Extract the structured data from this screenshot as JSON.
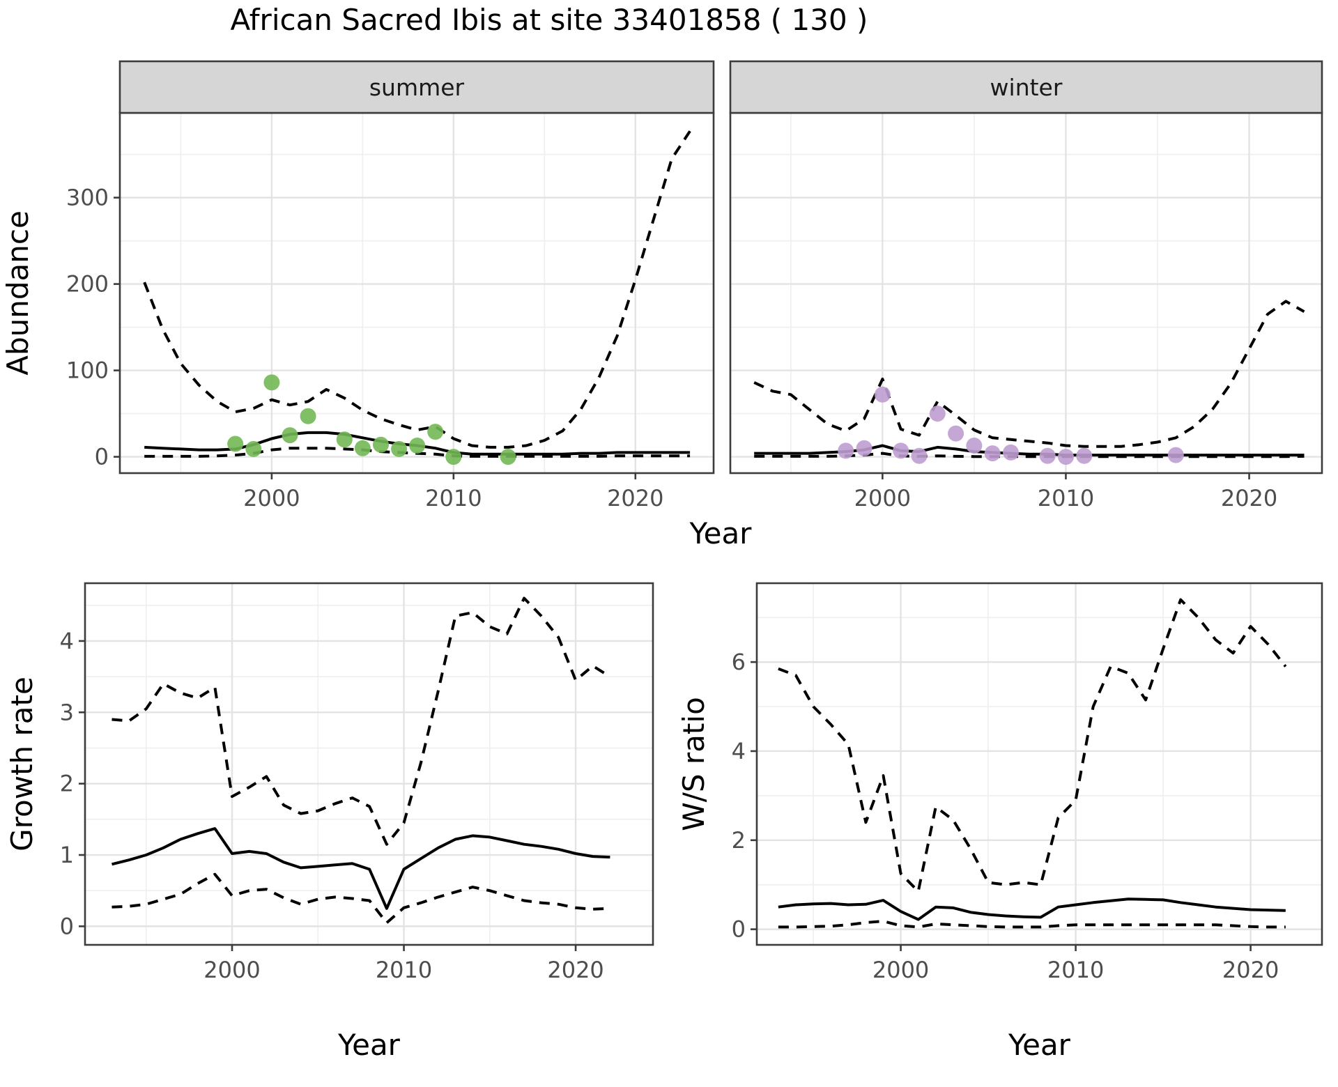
{
  "title": "African Sacred Ibis at site 33401858 ( 130 )",
  "colors": {
    "summer_points": "#73b857",
    "winter_points": "#bf9dd1",
    "line": "#000000",
    "grid_major": "#e3e3e3",
    "grid_minor": "#efefef",
    "panel_border": "#3c3c3c",
    "strip_fill": "#d6d6d6",
    "strip_text": "#1a1a1a",
    "tick_text": "#4d4d4d"
  },
  "chart_data": [
    {
      "id": "abundance-summer",
      "type": "line",
      "facet": "summer",
      "xlabel": "Year",
      "ylabel": "Abundance",
      "xlim": [
        1991.65,
        2024.3
      ],
      "ylim": [
        -18.9,
        398.1
      ],
      "x_ticks": [
        2000,
        2010,
        2020
      ],
      "x_minor": [
        1995,
        2005,
        2015
      ],
      "y_ticks": [
        0,
        100,
        200,
        300
      ],
      "y_minor": [
        50,
        150,
        250,
        350
      ],
      "grid": true,
      "legend": "none",
      "x": [
        1993,
        1994,
        1995,
        1996,
        1997,
        1998,
        1999,
        2000,
        2001,
        2002,
        2003,
        2004,
        2005,
        2006,
        2007,
        2008,
        2009,
        2010,
        2011,
        2012,
        2013,
        2014,
        2015,
        2016,
        2017,
        2018,
        2019,
        2020,
        2021,
        2022,
        2023
      ],
      "series": [
        {
          "name": "upper-ci",
          "style": "dashed",
          "values": [
            202,
            148,
            108,
            83,
            64,
            52,
            56,
            66,
            60,
            64,
            78,
            68,
            54,
            44,
            37,
            31,
            35,
            21,
            13,
            11,
            11,
            13,
            19,
            30,
            55,
            92,
            140,
            205,
            275,
            345,
            377
          ]
        },
        {
          "name": "median",
          "style": "solid",
          "values": [
            11,
            10,
            9,
            8,
            8,
            9,
            14,
            21,
            26,
            28,
            28,
            26,
            22,
            18,
            15,
            13,
            10,
            5,
            3,
            3,
            3,
            3,
            3,
            3,
            4,
            4,
            5,
            5,
            5,
            5,
            5
          ]
        },
        {
          "name": "lower-ci",
          "style": "dashed",
          "values": [
            0.5,
            0.5,
            0.5,
            0.5,
            1,
            2,
            4,
            8,
            10,
            10,
            10,
            9,
            8,
            6,
            5,
            4,
            3,
            1,
            0.5,
            0.5,
            0.5,
            0.5,
            0.5,
            0.5,
            0.5,
            0.5,
            1,
            1,
            1,
            1,
            1
          ]
        }
      ],
      "points": {
        "name": "observed-counts",
        "color": "#73b857",
        "data": [
          [
            1998,
            15
          ],
          [
            1999,
            9
          ],
          [
            2000,
            86
          ],
          [
            2001,
            25
          ],
          [
            2002,
            47
          ],
          [
            2004,
            20
          ],
          [
            2005,
            10
          ],
          [
            2006,
            14
          ],
          [
            2007,
            9
          ],
          [
            2008,
            13
          ],
          [
            2009,
            29
          ],
          [
            2010,
            0
          ],
          [
            2013,
            0
          ]
        ]
      }
    },
    {
      "id": "abundance-winter",
      "type": "line",
      "facet": "winter",
      "xlabel": "Year",
      "ylabel": "",
      "xlim": [
        1991.7,
        2023.97
      ],
      "ylim": [
        -18.9,
        398.1
      ],
      "x_ticks": [
        2000,
        2010,
        2020
      ],
      "x_minor": [
        1995,
        2005,
        2015
      ],
      "y_ticks": [
        0,
        100,
        200,
        300
      ],
      "y_minor": [
        50,
        150,
        250,
        350
      ],
      "grid": true,
      "legend": "none",
      "x": [
        1993,
        1994,
        1995,
        1996,
        1997,
        1998,
        1999,
        2000,
        2001,
        2002,
        2003,
        2004,
        2005,
        2006,
        2007,
        2008,
        2009,
        2010,
        2011,
        2012,
        2013,
        2014,
        2015,
        2016,
        2017,
        2018,
        2019,
        2020,
        2021,
        2022,
        2023
      ],
      "series": [
        {
          "name": "upper-ci",
          "style": "dashed",
          "values": [
            86,
            76,
            72,
            55,
            38,
            30,
            44,
            90,
            32,
            25,
            64,
            48,
            31,
            22,
            20,
            18,
            16,
            13,
            12,
            12,
            12,
            14,
            17,
            22,
            35,
            55,
            85,
            125,
            165,
            180,
            168
          ]
        },
        {
          "name": "median",
          "style": "solid",
          "values": [
            4,
            4,
            4,
            4,
            5,
            6,
            8,
            13,
            7,
            6,
            11,
            9,
            6,
            5,
            4,
            3,
            3,
            2,
            2,
            2,
            2,
            2,
            2,
            2,
            2,
            2,
            2,
            2,
            2,
            2,
            2
          ]
        },
        {
          "name": "lower-ci",
          "style": "dashed",
          "values": [
            0.5,
            0.5,
            0.5,
            0.5,
            0.5,
            1,
            2,
            4,
            1,
            0.5,
            1,
            0.5,
            0.3,
            0.3,
            0.3,
            0.3,
            0.3,
            0.3,
            0.3,
            0.3,
            0.3,
            0.3,
            0.3,
            0.3,
            0.3,
            0.3,
            0.3,
            0.3,
            0.3,
            0.3,
            0.5
          ]
        }
      ],
      "points": {
        "name": "observed-counts",
        "color": "#bf9dd1",
        "data": [
          [
            1998,
            7
          ],
          [
            1999,
            10
          ],
          [
            2000,
            72
          ],
          [
            2001,
            7
          ],
          [
            2002,
            1
          ],
          [
            2003,
            50
          ],
          [
            2004,
            27
          ],
          [
            2005,
            13
          ],
          [
            2006,
            4
          ],
          [
            2007,
            5
          ],
          [
            2009,
            1
          ],
          [
            2010,
            0
          ],
          [
            2011,
            1
          ],
          [
            2016,
            2
          ]
        ]
      }
    },
    {
      "id": "growth-rate",
      "type": "line",
      "facet": null,
      "xlabel": "Year",
      "ylabel": "Growth rate",
      "xlim": [
        1991.44,
        2024.5
      ],
      "ylim": [
        -0.26,
        4.81
      ],
      "x_ticks": [
        2000,
        2010,
        2020
      ],
      "x_minor": [
        1995,
        2005,
        2015
      ],
      "y_ticks": [
        0,
        1,
        2,
        3,
        4
      ],
      "y_minor": [
        0.5,
        1.5,
        2.5,
        3.5,
        4.5
      ],
      "grid": true,
      "legend": "none",
      "x": [
        1993,
        1994,
        1995,
        1996,
        1997,
        1998,
        1999,
        2000,
        2001,
        2002,
        2003,
        2004,
        2005,
        2006,
        2007,
        2008,
        2009,
        2010,
        2011,
        2012,
        2013,
        2014,
        2015,
        2016,
        2017,
        2018,
        2019,
        2020,
        2021,
        2022
      ],
      "series": [
        {
          "name": "upper-ci",
          "style": "dashed",
          "values": [
            2.9,
            2.88,
            3.05,
            3.4,
            3.27,
            3.2,
            3.35,
            1.82,
            1.95,
            2.1,
            1.7,
            1.58,
            1.62,
            1.72,
            1.8,
            1.68,
            1.15,
            1.45,
            2.3,
            3.3,
            4.35,
            4.4,
            4.2,
            4.1,
            4.6,
            4.35,
            4.05,
            3.45,
            3.65,
            3.5
          ]
        },
        {
          "name": "median",
          "style": "solid",
          "values": [
            0.87,
            0.93,
            1.0,
            1.1,
            1.22,
            1.3,
            1.37,
            1.02,
            1.05,
            1.02,
            0.9,
            0.82,
            0.84,
            0.86,
            0.88,
            0.8,
            0.25,
            0.8,
            0.95,
            1.1,
            1.22,
            1.27,
            1.25,
            1.2,
            1.15,
            1.12,
            1.08,
            1.02,
            0.98,
            0.97
          ]
        },
        {
          "name": "lower-ci",
          "style": "dashed",
          "values": [
            0.27,
            0.28,
            0.31,
            0.38,
            0.45,
            0.6,
            0.73,
            0.43,
            0.5,
            0.52,
            0.4,
            0.31,
            0.38,
            0.41,
            0.39,
            0.36,
            0.05,
            0.26,
            0.33,
            0.41,
            0.48,
            0.55,
            0.5,
            0.43,
            0.36,
            0.33,
            0.31,
            0.26,
            0.24,
            0.25
          ]
        }
      ],
      "points": null
    },
    {
      "id": "ws-ratio",
      "type": "line",
      "facet": null,
      "xlabel": "Year",
      "ylabel": "W/S ratio",
      "xlim": [
        1991.77,
        2024.08
      ],
      "ylim": [
        -0.35,
        7.77
      ],
      "x_ticks": [
        2000,
        2010,
        2020
      ],
      "x_minor": [
        1995,
        2005,
        2015
      ],
      "y_ticks": [
        0,
        2,
        4,
        6
      ],
      "y_minor": [
        1,
        3,
        5,
        7
      ],
      "grid": true,
      "legend": "none",
      "x": [
        1993,
        1994,
        1995,
        1996,
        1997,
        1998,
        1999,
        2000,
        2001,
        2002,
        2003,
        2004,
        2005,
        2006,
        2007,
        2008,
        2009,
        2010,
        2011,
        2012,
        2013,
        2014,
        2015,
        2016,
        2017,
        2018,
        2019,
        2020,
        2021,
        2022
      ],
      "series": [
        {
          "name": "upper-ci",
          "style": "dashed",
          "values": [
            5.85,
            5.7,
            5.0,
            4.6,
            4.15,
            2.4,
            3.45,
            1.25,
            0.85,
            2.75,
            2.45,
            1.8,
            1.05,
            1.0,
            1.05,
            1.0,
            2.5,
            2.9,
            5.0,
            5.9,
            5.75,
            5.15,
            6.3,
            7.4,
            7.0,
            6.5,
            6.2,
            6.8,
            6.4,
            5.9
          ]
        },
        {
          "name": "median",
          "style": "solid",
          "values": [
            0.5,
            0.55,
            0.57,
            0.58,
            0.55,
            0.56,
            0.65,
            0.4,
            0.22,
            0.5,
            0.48,
            0.38,
            0.33,
            0.3,
            0.28,
            0.27,
            0.5,
            0.55,
            0.6,
            0.64,
            0.68,
            0.67,
            0.66,
            0.6,
            0.55,
            0.5,
            0.47,
            0.44,
            0.43,
            0.42
          ]
        },
        {
          "name": "lower-ci",
          "style": "dashed",
          "values": [
            0.05,
            0.05,
            0.06,
            0.07,
            0.1,
            0.15,
            0.18,
            0.08,
            0.05,
            0.12,
            0.1,
            0.08,
            0.06,
            0.05,
            0.05,
            0.05,
            0.08,
            0.1,
            0.1,
            0.1,
            0.1,
            0.1,
            0.1,
            0.1,
            0.1,
            0.1,
            0.08,
            0.06,
            0.05,
            0.05
          ]
        }
      ],
      "points": null
    }
  ]
}
